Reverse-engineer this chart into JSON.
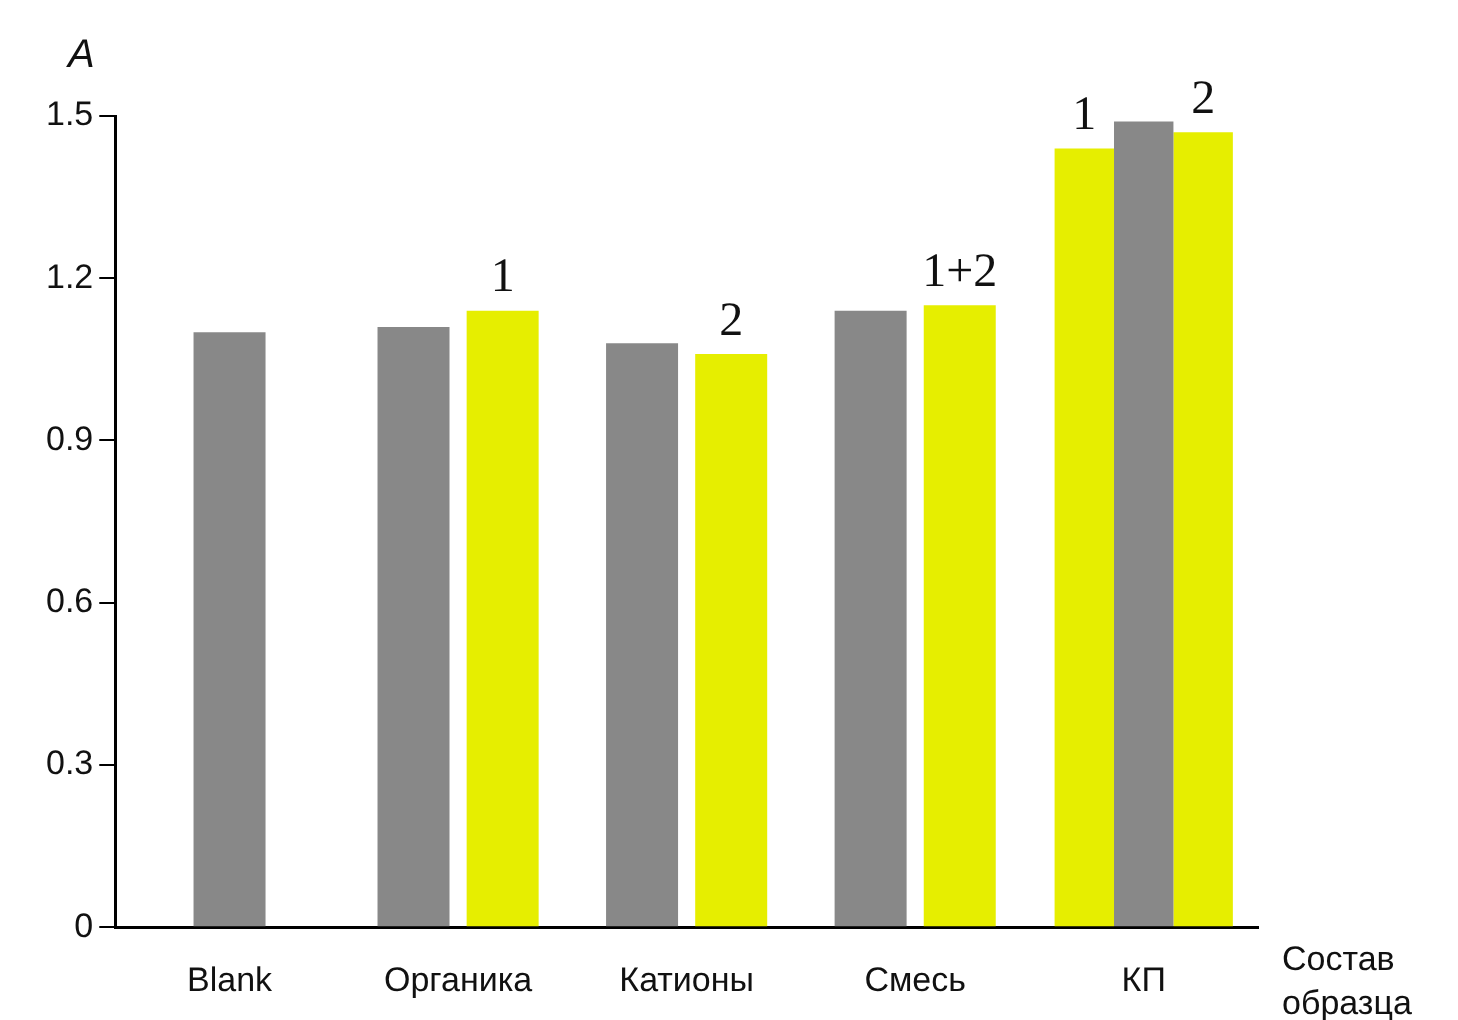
{
  "chart_data": {
    "type": "bar",
    "ylabel": "A",
    "xlabel": "Состав образца",
    "categories": [
      "Blank",
      "Органика",
      "Катионы",
      "Смесь",
      "КП"
    ],
    "series": [
      {
        "color": "#e6ee00",
        "values": [
          null,
          null,
          null,
          null,
          1.44
        ]
      },
      {
        "color": "#888888",
        "values": [
          1.1,
          1.11,
          1.08,
          1.14,
          1.49
        ]
      },
      {
        "color": "#e6ee00",
        "values": [
          null,
          1.14,
          1.06,
          1.15,
          1.47
        ]
      }
    ],
    "annotations": [
      {
        "text": "1",
        "x": "Органика",
        "y": 1.14
      },
      {
        "text": "2",
        "x": "Катионы",
        "y": 1.06
      },
      {
        "text": "1+2",
        "x": "Смесь",
        "y": 1.15
      },
      "1",
      "2"
    ],
    "ylim": [
      0,
      1.5
    ],
    "yticks": [
      0,
      0.3,
      0.6,
      0.9,
      1.2,
      1.5
    ],
    "grid": false,
    "legend": false
  }
}
